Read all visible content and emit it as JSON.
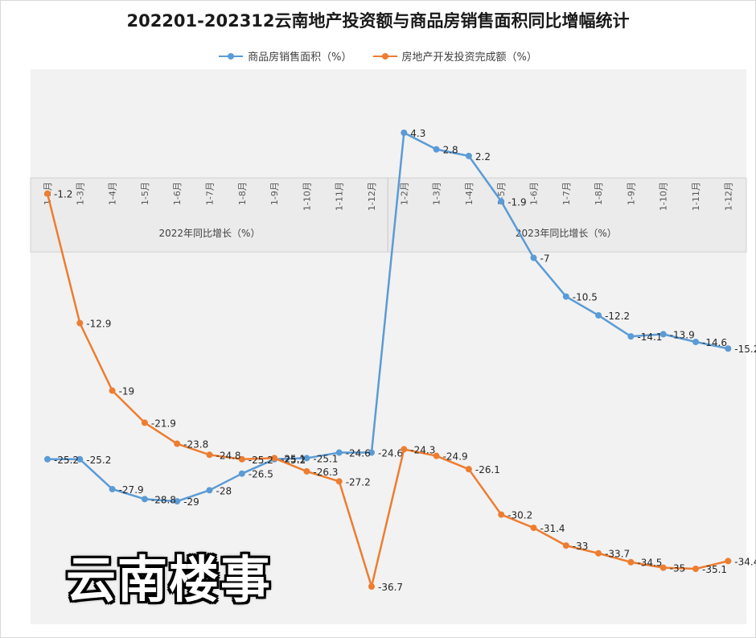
{
  "chart_data": {
    "type": "line",
    "title": "202201-202312云南地产投资额与商品房销售面积同比增幅统计",
    "groups": [
      "2022年同比增长（%）",
      "2023年同比增长（%）"
    ],
    "categories": [
      "1-2月",
      "1-3月",
      "1-4月",
      "1-5月",
      "1-6月",
      "1-7月",
      "1-8月",
      "1-9月",
      "1-10月",
      "1-11月",
      "1-12月",
      "1-2月",
      "1-3月",
      "1-4月",
      "1-5月",
      "1-6月",
      "1-7月",
      "1-8月",
      "1-9月",
      "1-10月",
      "1-11月",
      "1-12月"
    ],
    "series": [
      {
        "name": "商品房销售面积（%）",
        "color": "#5b9bd5",
        "values": [
          -25.2,
          -25.2,
          -27.9,
          -28.8,
          -29,
          -28,
          -26.5,
          -25.2,
          -25.1,
          -24.6,
          -24.6,
          4.3,
          2.8,
          2.2,
          -1.9,
          -7,
          -10.5,
          -12.2,
          -14.1,
          -13.9,
          -14.6,
          -15.2
        ]
      },
      {
        "name": "房地产开发投资完成额（%）",
        "color": "#ed7d31",
        "values": [
          -1.2,
          -12.9,
          -19,
          -21.9,
          -23.8,
          -24.8,
          -25.2,
          -25.1,
          -26.3,
          -27.2,
          -36.7,
          -24.3,
          -24.9,
          -26.1,
          -30.2,
          -31.4,
          -33,
          -33.7,
          -34.5,
          -35,
          -35.1,
          -34.4
        ]
      }
    ],
    "grid": false,
    "legend": "top"
  },
  "watermark": "云南楼事"
}
